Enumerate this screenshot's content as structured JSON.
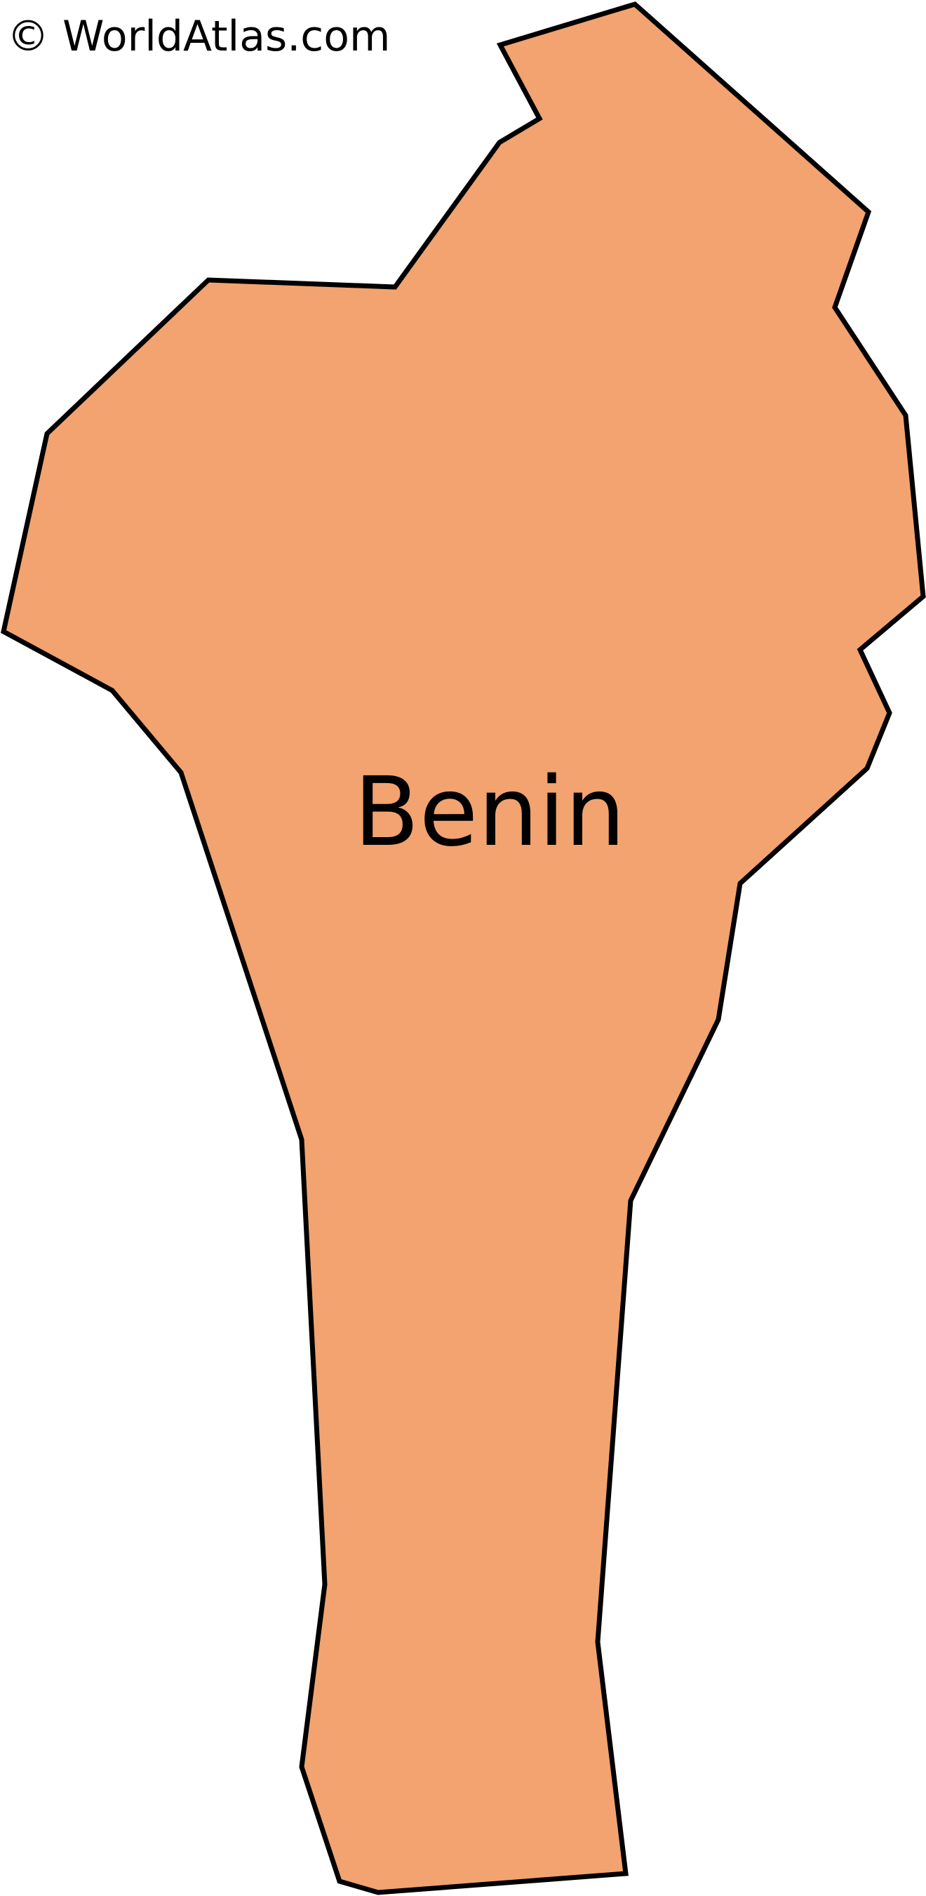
{
  "map": {
    "country": {
      "name": "Benin",
      "fill_color": "#F2A36F",
      "border_color": "#000000"
    },
    "background_color": "#FFFFFF"
  },
  "attribution": {
    "text": "© WorldAtlas.com"
  }
}
